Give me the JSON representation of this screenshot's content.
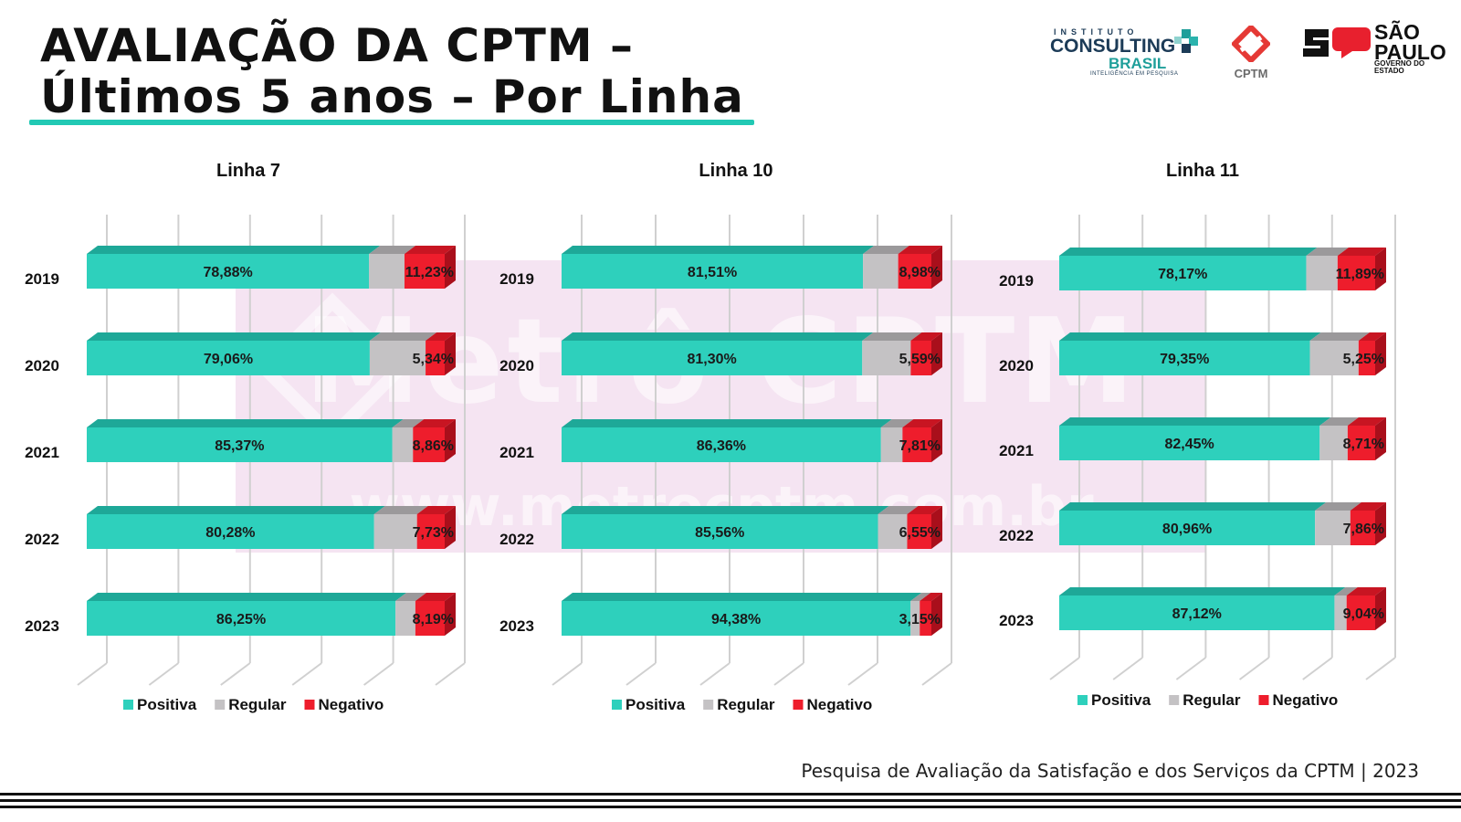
{
  "header": {
    "title_line1": "AVALIAÇÃO DA CPTM –",
    "title_line2": "Últimos 5 anos – Por Linha",
    "accent_color": "#22c9b4"
  },
  "logos": {
    "consulting": {
      "line1": "INSTITUTO",
      "line2": "CONSULTING",
      "line3": "BRASIL",
      "line4": "INTELIGÊNCIA EM PESQUISA"
    },
    "cptm": {
      "label": "CPTM"
    },
    "sp": {
      "line1": "SÃO PAULO",
      "line2": "GOVERNO DO ESTADO"
    }
  },
  "watermark": {
    "main": "Metrô CPTM",
    "url": "www.metrocptm.com.br"
  },
  "colors": {
    "positiva": "#2ed0bc",
    "regular": "#c4c2c4",
    "negativo": "#ee1d2c"
  },
  "legend": {
    "positiva": "Positiva",
    "regular": "Regular",
    "negativo": "Negativo"
  },
  "chart_data": [
    {
      "type": "bar",
      "stacked": true,
      "orientation": "horizontal",
      "title": "Linha 7",
      "categories": [
        "2019",
        "2020",
        "2021",
        "2022",
        "2023"
      ],
      "series": [
        {
          "name": "Positiva",
          "values": [
            78.88,
            79.06,
            85.37,
            80.28,
            86.25
          ],
          "labels": [
            "78,88%",
            "79,06%",
            "85,37%",
            "80,28%",
            "86,25%"
          ]
        },
        {
          "name": "Regular",
          "values": [
            9.89,
            15.6,
            5.77,
            11.99,
            5.56
          ],
          "labels": [
            "",
            "",
            "",
            "",
            ""
          ]
        },
        {
          "name": "Negativo",
          "values": [
            11.23,
            5.34,
            8.86,
            7.73,
            8.19
          ],
          "labels": [
            "11,23%",
            "5,34%",
            "8,86%",
            "7,73%",
            "8,19%"
          ]
        }
      ],
      "xlim": [
        0,
        100
      ],
      "legend_position": "bottom"
    },
    {
      "type": "bar",
      "stacked": true,
      "orientation": "horizontal",
      "title": "Linha 10",
      "categories": [
        "2019",
        "2020",
        "2021",
        "2022",
        "2023"
      ],
      "series": [
        {
          "name": "Positiva",
          "values": [
            81.51,
            81.3,
            86.36,
            85.56,
            94.38
          ],
          "labels": [
            "81,51%",
            "81,30%",
            "86,36%",
            "85,56%",
            "94,38%"
          ]
        },
        {
          "name": "Regular",
          "values": [
            9.51,
            13.11,
            5.83,
            7.89,
            2.47
          ],
          "labels": [
            "",
            "",
            "",
            "",
            ""
          ]
        },
        {
          "name": "Negativo",
          "values": [
            8.98,
            5.59,
            7.81,
            6.55,
            3.15
          ],
          "labels": [
            "8,98%",
            "5,59%",
            "7,81%",
            "6,55%",
            "3,15%"
          ]
        }
      ],
      "xlim": [
        0,
        100
      ],
      "legend_position": "bottom"
    },
    {
      "type": "bar",
      "stacked": true,
      "orientation": "horizontal",
      "title": "Linha 11",
      "categories": [
        "2019",
        "2020",
        "2021",
        "2022",
        "2023"
      ],
      "series": [
        {
          "name": "Positiva",
          "values": [
            78.17,
            79.35,
            82.45,
            80.96,
            87.12
          ],
          "labels": [
            "78,17%",
            "79,35%",
            "82,45%",
            "80,96%",
            "87,12%"
          ]
        },
        {
          "name": "Regular",
          "values": [
            9.94,
            15.4,
            8.84,
            11.18,
            3.84
          ],
          "labels": [
            "",
            "",
            "",
            "",
            ""
          ]
        },
        {
          "name": "Negativo",
          "values": [
            11.89,
            5.25,
            8.71,
            7.86,
            9.04
          ],
          "labels": [
            "11,89%",
            "5,25%",
            "8,71%",
            "7,86%",
            "9,04%"
          ]
        }
      ],
      "xlim": [
        0,
        100
      ],
      "legend_position": "bottom"
    }
  ],
  "footer": {
    "text": "Pesquisa de Avaliação da Satisfação e dos Serviços da CPTM | 2023"
  }
}
